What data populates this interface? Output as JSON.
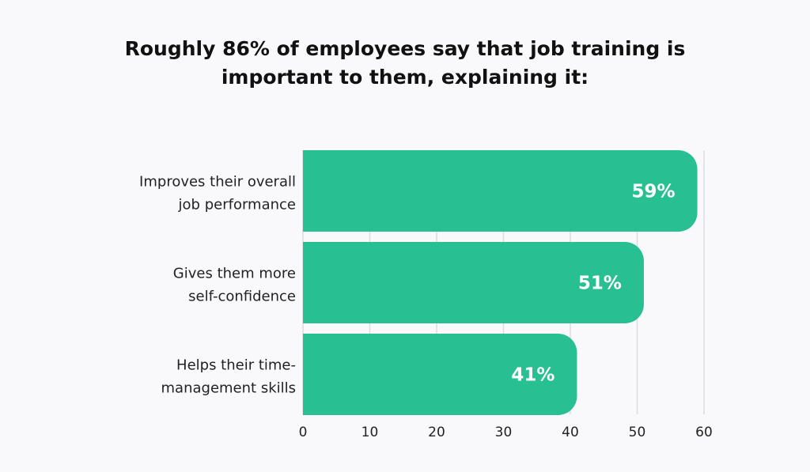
{
  "chart_data": {
    "type": "bar",
    "orientation": "horizontal",
    "title": [
      "Roughly 86% of employees say that job training is",
      "important to them, explaining it:"
    ],
    "categories": [
      [
        "Improves their overall",
        "job performance"
      ],
      [
        "Gives them more",
        "self-confidence"
      ],
      [
        "Helps their time-",
        "management skills"
      ]
    ],
    "values": [
      59,
      51,
      41
    ],
    "data_labels": [
      "59%",
      "51%",
      "41%"
    ],
    "xlim": [
      0,
      60
    ],
    "xticks": [
      "0",
      "10",
      "20",
      "30",
      "40",
      "50",
      "60"
    ],
    "grid": true,
    "colors": {
      "bar": "#28bf93",
      "background": "#f9f9fb",
      "grid": "#dcdcdf"
    }
  }
}
